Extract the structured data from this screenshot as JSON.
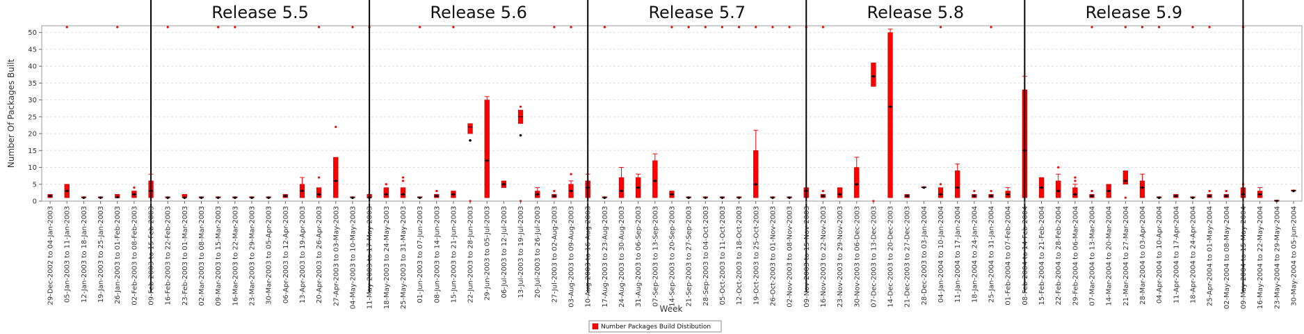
{
  "chart_data": {
    "type": "box",
    "xlabel": "Week",
    "ylabel": "Number Of Packages Built",
    "ylim": [
      0,
      52
    ],
    "yticks": [
      0,
      5,
      10,
      15,
      20,
      25,
      30,
      35,
      40,
      45,
      50
    ],
    "grid": true,
    "legend": {
      "position": "bottom-center",
      "label": "Number Packages Build Distibution"
    },
    "colors": {
      "box": "#ff0000",
      "outlier": "#ff0000",
      "median": "#000000",
      "separator": "#000000",
      "grid": "#dddddd"
    },
    "release_labels": [
      "Release 5.5",
      "Release 5.6",
      "Release 5.7",
      "Release 5.8",
      "Release 5.9"
    ],
    "categories": [
      "29-Dec-2002 to 04-Jan-2003",
      "05-Jan-2003 to 11-Jan-2003",
      "12-Jan-2003 to 18-Jan-2003",
      "19-Jan-2003 to 25-Jan-2003",
      "26-Jan-2003 to 01-Feb-2003",
      "02-Feb-2003 to 08-Feb-2003",
      "09-Feb-2003 to 15-Feb-2003",
      "16-Feb-2003 to 22-Feb-2003",
      "23-Feb-2003 to 01-Mar-2003",
      "02-Mar-2003 to 08-Mar-2003",
      "09-Mar-2003 to 15-Mar-2003",
      "16-Mar-2003 to 22-Mar-2003",
      "23-Mar-2003 to 29-Mar-2003",
      "30-Mar-2003 to 05-Apr-2003",
      "06-Apr-2003 to 12-Apr-2003",
      "13-Apr-2003 to 19-Apr-2003",
      "20-Apr-2003 to 26-Apr-2003",
      "27-Apr-2003 to 03-May-2003",
      "04-May-2003 to 10-May-2003",
      "11-May-2003 to 17-May-2003",
      "18-May-2003 to 24-May-2003",
      "25-May-2003 to 31-May-2003",
      "01-Jun-2003 to 07-Jun-2003",
      "08-Jun-2003 to 14-Jun-2003",
      "15-Jun-2003 to 21-Jun-2003",
      "22-Jun-2003 to 28-Jun-2003",
      "29-Jun-2003 to 05-Jul-2003",
      "06-Jul-2003 to 12-Jul-2003",
      "13-Jul-2003 to 19-Jul-2003",
      "20-Jul-2003 to 26-Jul-2003",
      "27-Jul-2003 to 02-Aug-2003",
      "03-Aug-2003 to 09-Aug-2003",
      "10-Aug-2003 to 16-Aug-2003",
      "17-Aug-2003 to 23-Aug-2003",
      "24-Aug-2003 to 30-Aug-2003",
      "31-Aug-2003 to 06-Sep-2003",
      "07-Sep-2003 to 13-Sep-2003",
      "14-Sep-2003 to 20-Sep-2003",
      "21-Sep-2003 to 27-Sep-2003",
      "28-Sep-2003 to 04-Oct-2003",
      "05-Oct-2003 to 11-Oct-2003",
      "12-Oct-2003 to 18-Oct-2003",
      "19-Oct-2003 to 25-Oct-2003",
      "26-Oct-2003 to 01-Nov-2003",
      "02-Nov-2003 to 08-Nov-2003",
      "09-Nov-2003 to 15-Nov-2003",
      "16-Nov-2003 to 22-Nov-2003",
      "23-Nov-2003 to 29-Nov-2003",
      "30-Nov-2003 to 06-Dec-2003",
      "07-Dec-2003 to 13-Dec-2003",
      "14-Dec-2003 to 20-Dec-2003",
      "21-Dec-2003 to 27-Dec-2003",
      "28-Dec-2003 to 03-Jan-2004",
      "04-Jan-2004 to 10-Jan-2004",
      "11-Jan-2004 to 17-Jan-2004",
      "18-Jan-2004 to 24-Jan-2004",
      "25-Jan-2004 to 31-Jan-2004",
      "01-Feb-2004 to 07-Feb-2004",
      "08-Feb-2004 to 14-Feb-2004",
      "15-Feb-2004 to 21-Feb-2004",
      "22-Feb-2004 to 28-Feb-2004",
      "29-Feb-2004 to 06-Mar-2004",
      "07-Mar-2004 to 13-Mar-2004",
      "14-Mar-2004 to 20-Mar-2004",
      "21-Mar-2004 to 27-Mar-2004",
      "28-Mar-2004 to 03-Apr-2004",
      "04-Apr-2004 to 10-Apr-2004",
      "11-Apr-2004 to 17-Apr-2004",
      "18-Apr-2004 to 24-Apr-2004",
      "25-Apr-2004 to 01-May-2004",
      "02-May-2004 to 08-May-2004",
      "09-May-2004 to 15-May-2004",
      "16-May-2004 to 22-May-2004",
      "23-May-2004 to 29-May-2004",
      "30-May-2004 to 05-Jun-2004"
    ],
    "boxes": [
      {
        "q1": 1,
        "q3": 2,
        "min": 1,
        "max": 2,
        "median": 1.5,
        "mean": 1.5,
        "outliers": []
      },
      {
        "q1": 1,
        "q3": 5,
        "min": 1,
        "max": 5,
        "median": 3,
        "mean": 3,
        "outliers": [
          52
        ]
      },
      {
        "q1": 1,
        "q3": 1,
        "min": 1,
        "max": 1,
        "median": 1,
        "mean": 1,
        "outliers": []
      },
      {
        "q1": 1,
        "q3": 1,
        "min": 1,
        "max": 1,
        "median": 1,
        "mean": 1,
        "outliers": []
      },
      {
        "q1": 1,
        "q3": 2,
        "min": 1,
        "max": 2,
        "median": 1,
        "mean": 1.2,
        "outliers": [
          52
        ]
      },
      {
        "q1": 1,
        "q3": 3,
        "min": 1,
        "max": 3,
        "median": 2,
        "mean": 2,
        "outliers": [
          4
        ]
      },
      {
        "q1": 1,
        "q3": 6,
        "min": 1,
        "max": 8,
        "median": 3,
        "mean": 3,
        "outliers": []
      },
      {
        "q1": 1,
        "q3": 1,
        "min": 1,
        "max": 1,
        "median": 1,
        "mean": 1,
        "outliers": [
          52
        ]
      },
      {
        "q1": 1,
        "q3": 2,
        "min": 1,
        "max": 2,
        "median": 1,
        "mean": 1,
        "outliers": []
      },
      {
        "q1": 1,
        "q3": 1,
        "min": 1,
        "max": 1,
        "median": 1,
        "mean": 1,
        "outliers": []
      },
      {
        "q1": 1,
        "q3": 1,
        "min": 1,
        "max": 1,
        "median": 1,
        "mean": 1,
        "outliers": [
          52
        ]
      },
      {
        "q1": 1,
        "q3": 1,
        "min": 1,
        "max": 1,
        "median": 1,
        "mean": 1,
        "outliers": [
          52
        ]
      },
      {
        "q1": 1,
        "q3": 1,
        "min": 1,
        "max": 1,
        "median": 1,
        "mean": 1,
        "outliers": []
      },
      {
        "q1": 1,
        "q3": 1,
        "min": 1,
        "max": 1,
        "median": 1,
        "mean": 1,
        "outliers": []
      },
      {
        "q1": 1,
        "q3": 2,
        "min": 1,
        "max": 2,
        "median": 1.5,
        "mean": 1.5,
        "outliers": []
      },
      {
        "q1": 1,
        "q3": 5,
        "min": 1,
        "max": 7,
        "median": 3,
        "mean": 3,
        "outliers": []
      },
      {
        "q1": 1,
        "q3": 4,
        "min": 1,
        "max": 4,
        "median": 2,
        "mean": 2,
        "outliers": [
          7,
          52
        ]
      },
      {
        "q1": 1,
        "q3": 13,
        "min": 1,
        "max": 13,
        "median": 6,
        "mean": 6,
        "outliers": [
          22
        ]
      },
      {
        "q1": 1,
        "q3": 1,
        "min": 1,
        "max": 1,
        "median": 1,
        "mean": 1,
        "outliers": [
          52
        ]
      },
      {
        "q1": 1,
        "q3": 2,
        "min": 1,
        "max": 2,
        "median": 1,
        "mean": 1,
        "outliers": [
          52
        ]
      },
      {
        "q1": 1,
        "q3": 4,
        "min": 1,
        "max": 4,
        "median": 2,
        "mean": 2,
        "outliers": [
          5
        ]
      },
      {
        "q1": 1,
        "q3": 4,
        "min": 1,
        "max": 4,
        "median": 2,
        "mean": 2,
        "outliers": [
          6,
          7
        ]
      },
      {
        "q1": 1,
        "q3": 1,
        "min": 1,
        "max": 1,
        "median": 1,
        "mean": 1,
        "outliers": [
          52
        ]
      },
      {
        "q1": 1,
        "q3": 2,
        "min": 1,
        "max": 2,
        "median": 1.5,
        "mean": 1.5,
        "outliers": [
          3
        ]
      },
      {
        "q1": 1,
        "q3": 3,
        "min": 1,
        "max": 3,
        "median": 2,
        "mean": 2,
        "outliers": [
          52
        ]
      },
      {
        "q1": 20,
        "q3": 23,
        "min": 20,
        "max": 23,
        "median": 22,
        "mean": 18,
        "outliers": [
          0
        ]
      },
      {
        "q1": 1,
        "q3": 30,
        "min": 1,
        "max": 31,
        "median": 12,
        "mean": 12,
        "outliers": []
      },
      {
        "q1": 4,
        "q3": 6,
        "min": 4,
        "max": 6,
        "median": 5,
        "mean": 5,
        "outliers": []
      },
      {
        "q1": 23,
        "q3": 27,
        "min": 23,
        "max": 27,
        "median": 25,
        "mean": 19.5,
        "outliers": [
          28,
          0
        ]
      },
      {
        "q1": 1,
        "q3": 3,
        "min": 1,
        "max": 4,
        "median": 2,
        "mean": 2,
        "outliers": []
      },
      {
        "q1": 1,
        "q3": 2,
        "min": 1,
        "max": 2,
        "median": 1.5,
        "mean": 1.5,
        "outliers": [
          3,
          52
        ]
      },
      {
        "q1": 1,
        "q3": 5,
        "min": 1,
        "max": 6,
        "median": 3,
        "mean": 3,
        "outliers": [
          8,
          52
        ]
      },
      {
        "q1": 1,
        "q3": 6,
        "min": 1,
        "max": 8,
        "median": 4,
        "mean": 4,
        "outliers": []
      },
      {
        "q1": 1,
        "q3": 1,
        "min": 1,
        "max": 1,
        "median": 1,
        "mean": 1,
        "outliers": [
          52
        ]
      },
      {
        "q1": 1,
        "q3": 7,
        "min": 1,
        "max": 10,
        "median": 3,
        "mean": 3,
        "outliers": []
      },
      {
        "q1": 1,
        "q3": 7,
        "min": 1,
        "max": 8,
        "median": 4,
        "mean": 4,
        "outliers": []
      },
      {
        "q1": 1,
        "q3": 12,
        "min": 1,
        "max": 14,
        "median": 6,
        "mean": 6,
        "outliers": []
      },
      {
        "q1": 1,
        "q3": 3,
        "min": 1,
        "max": 3,
        "median": 2,
        "mean": 2,
        "outliers": [
          52
        ]
      },
      {
        "q1": 1,
        "q3": 1,
        "min": 1,
        "max": 1,
        "median": 1,
        "mean": 1,
        "outliers": [
          52
        ]
      },
      {
        "q1": 1,
        "q3": 1,
        "min": 1,
        "max": 1,
        "median": 1,
        "mean": 1,
        "outliers": [
          52
        ]
      },
      {
        "q1": 1,
        "q3": 1,
        "min": 1,
        "max": 1,
        "median": 1,
        "mean": 1,
        "outliers": [
          52
        ]
      },
      {
        "q1": 1,
        "q3": 1,
        "min": 1,
        "max": 1,
        "median": 1,
        "mean": 1,
        "outliers": [
          52
        ]
      },
      {
        "q1": 1,
        "q3": 15,
        "min": 1,
        "max": 21,
        "median": 5,
        "mean": 5,
        "outliers": [
          52
        ]
      },
      {
        "q1": 1,
        "q3": 1,
        "min": 1,
        "max": 1,
        "median": 1,
        "mean": 1,
        "outliers": [
          52
        ]
      },
      {
        "q1": 1,
        "q3": 1,
        "min": 1,
        "max": 1,
        "median": 1,
        "mean": 1,
        "outliers": [
          52
        ]
      },
      {
        "q1": 1,
        "q3": 4,
        "min": 1,
        "max": 4,
        "median": 3,
        "mean": 3,
        "outliers": [
          52
        ]
      },
      {
        "q1": 1,
        "q3": 2,
        "min": 1,
        "max": 2,
        "median": 1.5,
        "mean": 1.5,
        "outliers": [
          3,
          52
        ]
      },
      {
        "q1": 1,
        "q3": 4,
        "min": 1,
        "max": 4,
        "median": 2,
        "mean": 2,
        "outliers": []
      },
      {
        "q1": 1,
        "q3": 10,
        "min": 1,
        "max": 13,
        "median": 5,
        "mean": 5,
        "outliers": []
      },
      {
        "q1": 34,
        "q3": 41,
        "min": 34,
        "max": 41,
        "median": 37,
        "mean": 37,
        "outliers": [
          0
        ]
      },
      {
        "q1": 1,
        "q3": 50,
        "min": 1,
        "max": 51,
        "median": 28,
        "mean": 28,
        "outliers": []
      },
      {
        "q1": 1,
        "q3": 2,
        "min": 1,
        "max": 2,
        "median": 1.5,
        "mean": 1.5,
        "outliers": []
      },
      {
        "q1": 4,
        "q3": 4,
        "min": 4,
        "max": 4,
        "median": 4,
        "mean": 4,
        "outliers": []
      },
      {
        "q1": 1,
        "q3": 4,
        "min": 1,
        "max": 4,
        "median": 2,
        "mean": 2,
        "outliers": [
          5,
          52
        ]
      },
      {
        "q1": 1,
        "q3": 9,
        "min": 1,
        "max": 11,
        "median": 4,
        "mean": 4,
        "outliers": []
      },
      {
        "q1": 1,
        "q3": 2,
        "min": 1,
        "max": 2,
        "median": 1.5,
        "mean": 1.5,
        "outliers": [
          3
        ]
      },
      {
        "q1": 1,
        "q3": 2,
        "min": 1,
        "max": 2,
        "median": 1.5,
        "mean": 1.5,
        "outliers": [
          3,
          52
        ]
      },
      {
        "q1": 1,
        "q3": 3,
        "min": 1,
        "max": 4,
        "median": 2,
        "mean": 2,
        "outliers": []
      },
      {
        "q1": 1,
        "q3": 33,
        "min": 1,
        "max": 37,
        "median": 15,
        "mean": 15,
        "outliers": []
      },
      {
        "q1": 1,
        "q3": 7,
        "min": 1,
        "max": 7,
        "median": 4,
        "mean": 4,
        "outliers": []
      },
      {
        "q1": 1,
        "q3": 6,
        "min": 1,
        "max": 8,
        "median": 3,
        "mean": 3,
        "outliers": [
          10
        ]
      },
      {
        "q1": 1,
        "q3": 4,
        "min": 1,
        "max": 5,
        "median": 2,
        "mean": 2,
        "outliers": [
          6,
          7
        ]
      },
      {
        "q1": 1,
        "q3": 2,
        "min": 1,
        "max": 2,
        "median": 1.5,
        "mean": 1.5,
        "outliers": [
          3,
          52
        ]
      },
      {
        "q1": 1,
        "q3": 5,
        "min": 1,
        "max": 5,
        "median": 3,
        "mean": 3,
        "outliers": []
      },
      {
        "q1": 5,
        "q3": 9,
        "min": 5,
        "max": 9,
        "median": 6,
        "mean": 6,
        "outliers": [
          1,
          52
        ]
      },
      {
        "q1": 1,
        "q3": 6,
        "min": 1,
        "max": 8,
        "median": 4,
        "mean": 4,
        "outliers": [
          52
        ]
      },
      {
        "q1": 1,
        "q3": 1,
        "min": 1,
        "max": 1,
        "median": 1,
        "mean": 1,
        "outliers": [
          52
        ]
      },
      {
        "q1": 1,
        "q3": 2,
        "min": 1,
        "max": 2,
        "median": 1.5,
        "mean": 1.5,
        "outliers": []
      },
      {
        "q1": 1,
        "q3": 1,
        "min": 1,
        "max": 1,
        "median": 1,
        "mean": 1,
        "outliers": [
          52
        ]
      },
      {
        "q1": 1,
        "q3": 2,
        "min": 1,
        "max": 2,
        "median": 1.5,
        "mean": 1.5,
        "outliers": [
          3,
          52
        ]
      },
      {
        "q1": 1,
        "q3": 2,
        "min": 1,
        "max": 2,
        "median": 1.5,
        "mean": 1.5,
        "outliers": [
          3
        ]
      },
      {
        "q1": 1,
        "q3": 4,
        "min": 1,
        "max": 4,
        "median": 2,
        "mean": 2,
        "outliers": [
          5,
          52
        ]
      },
      {
        "q1": 1,
        "q3": 3,
        "min": 1,
        "max": 4,
        "median": 2,
        "mean": 2,
        "outliers": []
      },
      {
        "q1": 0,
        "q3": 0,
        "min": 0,
        "max": 0,
        "median": 0,
        "mean": 0,
        "outliers": []
      },
      {
        "q1": 3,
        "q3": 3,
        "min": 3,
        "max": 3,
        "median": 3,
        "mean": 3,
        "outliers": []
      }
    ]
  }
}
